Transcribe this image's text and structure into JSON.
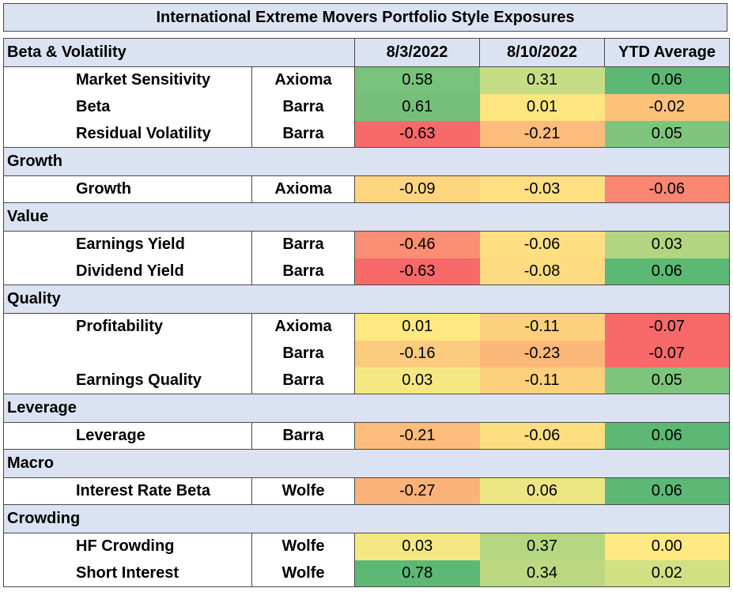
{
  "title": "International Extreme Movers Portfolio Style Exposures",
  "header": {
    "section_label": "Beta & Volatility",
    "columns": [
      "8/3/2022",
      "8/10/2022",
      "YTD Average"
    ]
  },
  "sections": [
    {
      "name": "Beta & Volatility",
      "rows": [
        {
          "label": "Market Sensitivity",
          "source": "Axioma",
          "values": [
            "0.58",
            "0.31",
            "0.06"
          ],
          "colors": [
            "#79c27b",
            "#c5de84",
            "#5cb874"
          ]
        },
        {
          "label": "Beta",
          "source": "Barra",
          "values": [
            "0.61",
            "0.01",
            "-0.02"
          ],
          "colors": [
            "#74c07b",
            "#fde57f",
            "#fdc27a"
          ]
        },
        {
          "label": "Residual Volatility",
          "source": "Barra",
          "values": [
            "-0.63",
            "-0.21",
            "0.05"
          ],
          "colors": [
            "#f86a6a",
            "#fcbc7b",
            "#7ec47d"
          ]
        }
      ]
    },
    {
      "name": "Growth",
      "rows": [
        {
          "label": "Growth",
          "source": "Axioma",
          "values": [
            "-0.09",
            "-0.03",
            "-0.06"
          ],
          "colors": [
            "#fed57f",
            "#fedf81",
            "#f98670"
          ]
        }
      ]
    },
    {
      "name": "Value",
      "rows": [
        {
          "label": "Earnings Yield",
          "source": "Barra",
          "values": [
            "-0.46",
            "-0.06",
            "0.03"
          ],
          "colors": [
            "#fa8e72",
            "#fddf81",
            "#b1d580"
          ]
        },
        {
          "label": "Dividend Yield",
          "source": "Barra",
          "values": [
            "-0.63",
            "-0.08",
            "0.06"
          ],
          "colors": [
            "#f86a6a",
            "#fedb81",
            "#5cb874"
          ]
        }
      ]
    },
    {
      "name": "Quality",
      "rows": [
        {
          "label": "Profitability",
          "source": "Axioma",
          "values": [
            "0.01",
            "-0.11",
            "-0.07"
          ],
          "colors": [
            "#fde881",
            "#fdd07e",
            "#f86a6a"
          ]
        },
        {
          "label": "",
          "source": "Barra",
          "values": [
            "-0.16",
            "-0.23",
            "-0.07"
          ],
          "colors": [
            "#fccb7d",
            "#fcb879",
            "#f86a6a"
          ]
        },
        {
          "label": "Earnings Quality",
          "source": "Barra",
          "values": [
            "0.03",
            "-0.11",
            "0.05"
          ],
          "colors": [
            "#f5e883",
            "#fdd07e",
            "#7ec47d"
          ]
        }
      ]
    },
    {
      "name": "Leverage",
      "rows": [
        {
          "label": "Leverage",
          "source": "Barra",
          "values": [
            "-0.21",
            "-0.06",
            "0.06"
          ],
          "colors": [
            "#fcbc7b",
            "#fddf81",
            "#5cb874"
          ]
        }
      ]
    },
    {
      "name": "Macro",
      "rows": [
        {
          "label": "Interest Rate Beta",
          "source": "Wolfe",
          "values": [
            "-0.27",
            "0.06",
            "0.06"
          ],
          "colors": [
            "#fbb279",
            "#ebe583",
            "#5cb874"
          ]
        }
      ]
    },
    {
      "name": "Crowding",
      "rows": [
        {
          "label": "HF Crowding",
          "source": "Wolfe",
          "values": [
            "0.03",
            "0.37",
            "0.00"
          ],
          "colors": [
            "#f5e883",
            "#b4d680",
            "#fde882"
          ]
        },
        {
          "label": "Short Interest",
          "source": "Wolfe",
          "values": [
            "0.78",
            "0.34",
            "0.02"
          ],
          "colors": [
            "#5cb874",
            "#bcd981",
            "#cfe183"
          ]
        }
      ]
    }
  ]
}
